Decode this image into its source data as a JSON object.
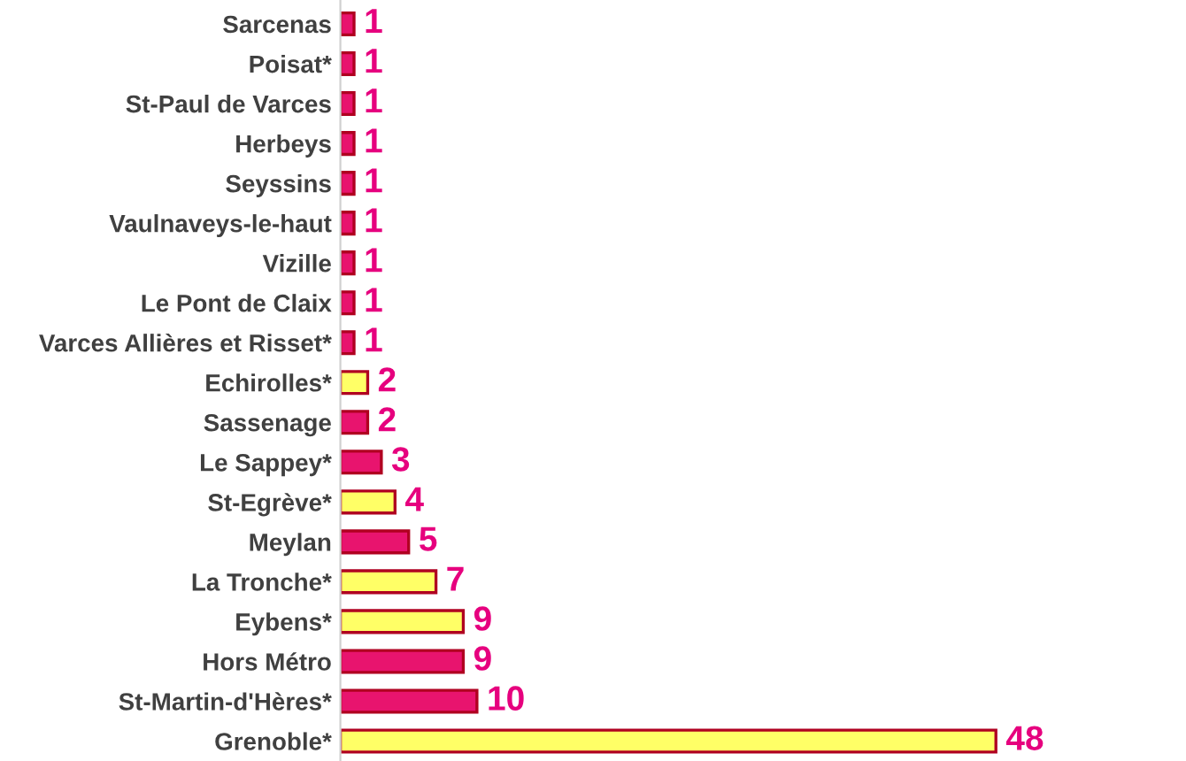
{
  "chart_data": {
    "type": "bar",
    "orientation": "horizontal",
    "categories": [
      "Sarcenas",
      "Poisat*",
      "St-Paul de Varces",
      "Herbeys",
      "Seyssins",
      "Vaulnaveys-le-haut",
      "Vizille",
      "Le Pont de Claix",
      "Varces Allières et Risset*",
      "Echirolles*",
      "Sassenage",
      "Le Sappey*",
      "St-Egrève*",
      "Meylan",
      "La Tronche*",
      "Eybens*",
      "Hors Métro",
      "St-Martin-d'Hères*",
      "Grenoble*"
    ],
    "values": [
      1,
      1,
      1,
      1,
      1,
      1,
      1,
      1,
      1,
      2,
      2,
      3,
      4,
      5,
      7,
      9,
      9,
      10,
      48
    ],
    "colors": [
      "#e8146e",
      "#e8146e",
      "#e8146e",
      "#e8146e",
      "#e8146e",
      "#e8146e",
      "#e8146e",
      "#e8146e",
      "#e8146e",
      "#ffff66",
      "#e8146e",
      "#e8146e",
      "#ffff66",
      "#e8146e",
      "#ffff66",
      "#ffff66",
      "#e8146e",
      "#e8146e",
      "#ffff66"
    ],
    "data_labels": true,
    "tick_labels": "y",
    "grid": false,
    "legend": false
  }
}
